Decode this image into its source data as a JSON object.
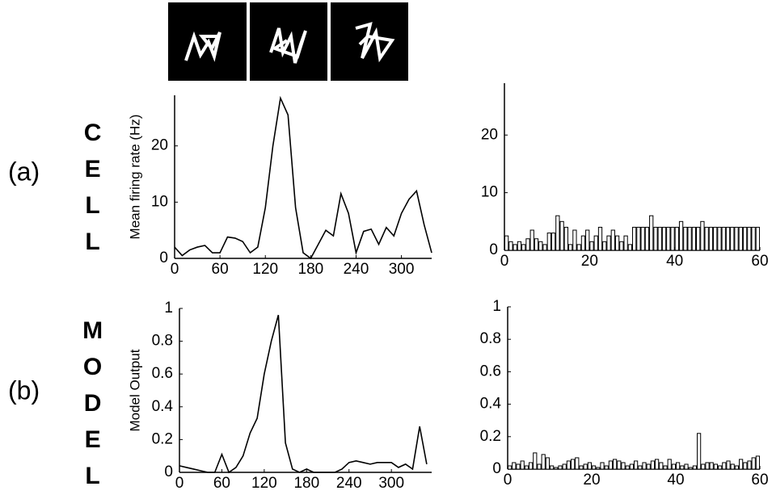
{
  "panels": [
    {
      "label": "(a)",
      "row_label": "CELL"
    },
    {
      "label": "(b)",
      "row_label": "MODEL"
    }
  ],
  "chart_data": [
    {
      "type": "line",
      "y_label": "Mean firing rate (Hz)",
      "color": "#000000",
      "x": [
        0,
        10,
        20,
        30,
        40,
        50,
        60,
        70,
        80,
        90,
        100,
        110,
        120,
        130,
        140,
        150,
        160,
        170,
        180,
        190,
        200,
        210,
        220,
        230,
        240,
        250,
        260,
        270,
        280,
        290,
        300,
        310,
        320,
        330,
        340
      ],
      "values": [
        2,
        0.5,
        1.5,
        2,
        2.3,
        1,
        1,
        3.8,
        3.6,
        3,
        1,
        2,
        9,
        20,
        28.5,
        25.5,
        9,
        1,
        0,
        2.5,
        5,
        4,
        11.5,
        8,
        1,
        4.8,
        5.2,
        2.5,
        5.5,
        4,
        8,
        10.5,
        12,
        6,
        1
      ],
      "xlim": [
        0,
        340
      ],
      "xticks": [
        0,
        60,
        120,
        180,
        240,
        300
      ],
      "ylim": [
        0,
        29
      ],
      "yticks": [
        0,
        10,
        20
      ]
    },
    {
      "type": "bar",
      "color": "#ffffff",
      "x": [
        0,
        1,
        2,
        3,
        4,
        5,
        6,
        7,
        8,
        9,
        10,
        11,
        12,
        13,
        14,
        15,
        16,
        17,
        18,
        19,
        20,
        21,
        22,
        23,
        24,
        25,
        26,
        27,
        28,
        29,
        30,
        31,
        32,
        33,
        34,
        35,
        36,
        37,
        38,
        39,
        40,
        41,
        42,
        43,
        44,
        45,
        46,
        47,
        48,
        49,
        50,
        51,
        52,
        53,
        54,
        55,
        56,
        57,
        58,
        59
      ],
      "values": [
        2.5,
        1.5,
        1,
        1.5,
        1,
        2,
        3.5,
        2,
        1.5,
        1,
        3,
        3,
        6,
        5,
        4,
        1,
        3.5,
        1,
        2.5,
        3.5,
        1.5,
        2.5,
        4,
        1.5,
        2.5,
        3.5,
        2.5,
        1.5,
        2.5,
        1,
        4,
        4,
        4,
        4,
        6,
        4,
        4,
        4,
        4,
        4,
        4,
        5,
        4,
        4,
        4,
        4,
        5,
        4,
        4,
        4,
        4,
        4,
        4,
        4,
        4,
        4,
        4,
        4,
        4,
        4
      ],
      "xlim": [
        0,
        60
      ],
      "xticks": [
        0,
        20,
        40,
        60
      ],
      "ylim": [
        0,
        29
      ],
      "yticks": [
        0,
        10,
        20
      ]
    },
    {
      "type": "line",
      "y_label": "Model Output",
      "color": "#000000",
      "x": [
        0,
        10,
        20,
        30,
        40,
        50,
        60,
        70,
        80,
        90,
        100,
        110,
        120,
        130,
        140,
        150,
        160,
        170,
        180,
        190,
        200,
        210,
        220,
        230,
        240,
        250,
        260,
        270,
        280,
        290,
        300,
        310,
        320,
        330,
        340,
        350
      ],
      "values": [
        0.04,
        0.03,
        0.02,
        0.01,
        0,
        0,
        0.11,
        0,
        0.03,
        0.1,
        0.24,
        0.33,
        0.6,
        0.8,
        0.96,
        0.18,
        0.02,
        0,
        0.02,
        0,
        0,
        0,
        0,
        0.02,
        0.06,
        0.07,
        0.06,
        0.05,
        0.06,
        0.06,
        0.06,
        0.03,
        0.05,
        0.02,
        0.28,
        0.05
      ],
      "xlim": [
        0,
        357
      ],
      "xticks": [
        0,
        60,
        120,
        180,
        240,
        300
      ],
      "ylim": [
        0,
        1
      ],
      "yticks": [
        0,
        0.2,
        0.4,
        0.6,
        0.8,
        1
      ]
    },
    {
      "type": "bar",
      "color": "#ffffff",
      "x": [
        0,
        1,
        2,
        3,
        4,
        5,
        6,
        7,
        8,
        9,
        10,
        11,
        12,
        13,
        14,
        15,
        16,
        17,
        18,
        19,
        20,
        21,
        22,
        23,
        24,
        25,
        26,
        27,
        28,
        29,
        30,
        31,
        32,
        33,
        34,
        35,
        36,
        37,
        38,
        39,
        40,
        41,
        42,
        43,
        44,
        45,
        46,
        47,
        48,
        49,
        50,
        51,
        52,
        53,
        54,
        55,
        56,
        57,
        58,
        59
      ],
      "values": [
        0.02,
        0.04,
        0.03,
        0.05,
        0.02,
        0.04,
        0.1,
        0.03,
        0.09,
        0.07,
        0.02,
        0.01,
        0.02,
        0.03,
        0.05,
        0.06,
        0.07,
        0.02,
        0.03,
        0.04,
        0.02,
        0.01,
        0.04,
        0.02,
        0.05,
        0.06,
        0.05,
        0.04,
        0.02,
        0.03,
        0.05,
        0.02,
        0.04,
        0.03,
        0.05,
        0.06,
        0.04,
        0.02,
        0.06,
        0.03,
        0.04,
        0.02,
        0.03,
        0.01,
        0.02,
        0.22,
        0.03,
        0.04,
        0.04,
        0.03,
        0.02,
        0.04,
        0.05,
        0.03,
        0.02,
        0.06,
        0.04,
        0.05,
        0.07,
        0.08
      ],
      "xlim": [
        0,
        60
      ],
      "xticks": [
        0,
        20,
        40,
        60
      ],
      "ylim": [
        0,
        1
      ],
      "yticks": [
        0,
        0.2,
        0.4,
        0.6,
        0.8,
        1
      ]
    }
  ]
}
